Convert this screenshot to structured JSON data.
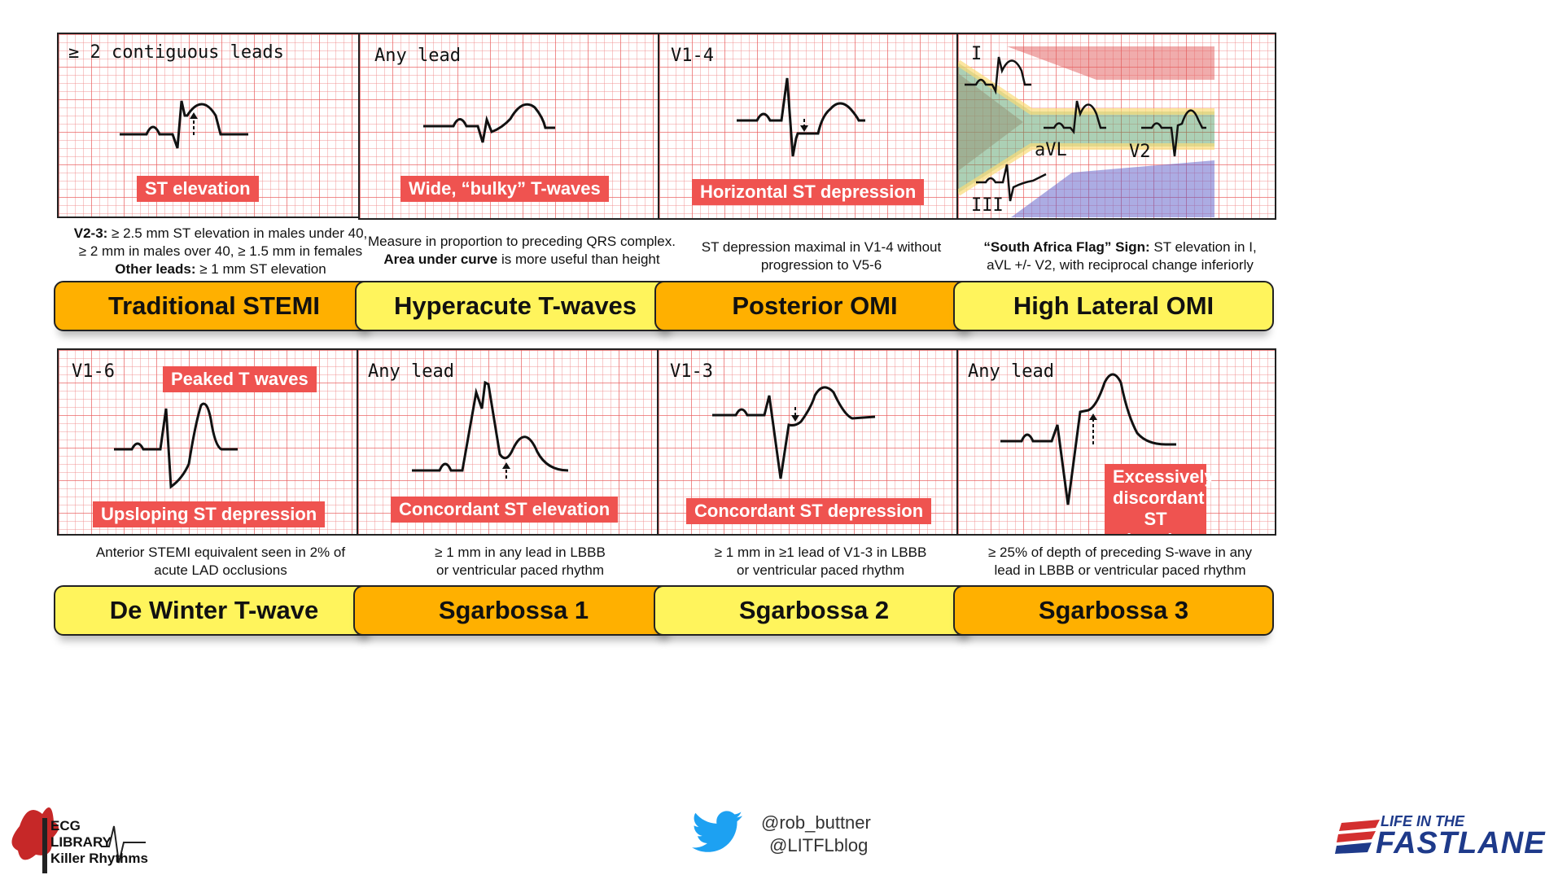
{
  "cards": [
    {
      "lead": "≥ 2 contiguous leads",
      "tag": "ST elevation",
      "title": "Traditional STEMI",
      "desc": [
        {
          "b": "V2-3:",
          "t": " ≥ 2.5 mm ST elevation in males under 40,"
        },
        {
          "b": "",
          "t": "≥ 2 mm in males over 40, ≥ 1.5 mm in females"
        },
        {
          "b": "Other leads:",
          "t": " ≥ 1 mm ST elevation"
        }
      ]
    },
    {
      "lead": "Any lead",
      "tag": "Wide, “bulky” T-waves",
      "title": "Hyperacute T-waves",
      "desc": [
        {
          "b": "",
          "t": "Measure in proportion to preceding QRS complex."
        },
        {
          "b": "Area under curve",
          "t": " is more useful than height"
        }
      ]
    },
    {
      "lead": "V1-4",
      "tag": "Horizontal ST depression",
      "title": "Posterior OMI",
      "desc": [
        {
          "b": "",
          "t": "ST depression maximal in V1-4 without"
        },
        {
          "b": "",
          "t": "progression to V5-6"
        }
      ]
    },
    {
      "leads": [
        "I",
        "aVL",
        "V2",
        "III"
      ],
      "title": "High Lateral OMI",
      "desc": [
        {
          "b": "“South Africa Flag” Sign:",
          "t": " ST elevation in I,"
        },
        {
          "b": "",
          "t": "aVL +/- V2, with reciprocal change inferiorly"
        }
      ]
    },
    {
      "lead": "V1-6",
      "tag": "Peaked T waves",
      "tag2": "Upsloping ST depression",
      "title": "De Winter T-wave",
      "desc": [
        {
          "b": "",
          "t": "Anterior STEMI equivalent seen in 2% of"
        },
        {
          "b": "",
          "t": "acute LAD occlusions"
        }
      ]
    },
    {
      "lead": "Any lead",
      "tag": "Concordant ST elevation",
      "title": "Sgarbossa 1",
      "desc": [
        {
          "b": "",
          "t": "≥ 1 mm in any lead in LBBB"
        },
        {
          "b": "",
          "t": "or ventricular paced rhythm"
        }
      ]
    },
    {
      "lead": "V1-3",
      "tag": "Concordant ST depression",
      "title": "Sgarbossa 2",
      "desc": [
        {
          "b": "",
          "t": "≥ 1 mm in ≥1 lead of V1-3 in LBBB"
        },
        {
          "b": "",
          "t": "or ventricular paced rhythm"
        }
      ]
    },
    {
      "lead": "Any lead",
      "tag": "Excessively discordant ST elevation",
      "title": "Sgarbossa 3",
      "desc": [
        {
          "b": "",
          "t": "≥ 25% of depth of preceding S-wave in any"
        },
        {
          "b": "",
          "t": "lead in LBBB or ventricular paced rhythm"
        }
      ]
    }
  ],
  "footer": {
    "logo_left": {
      "line1": "ECG",
      "line2": "LIBRARY",
      "line3": "Killer Rhythms"
    },
    "twitter": [
      "@rob_buttner",
      "@LITFLblog"
    ],
    "logo_right": {
      "line1": "LIFE IN THE",
      "line2": "FASTLANE"
    }
  },
  "colors": {
    "orange": "#ffb000",
    "yellow": "#fff45c",
    "tag": "#ef5350",
    "twitter": "#1da1f2",
    "litfl_red": "#d32f2f",
    "litfl_blue": "#1e3a8a"
  }
}
